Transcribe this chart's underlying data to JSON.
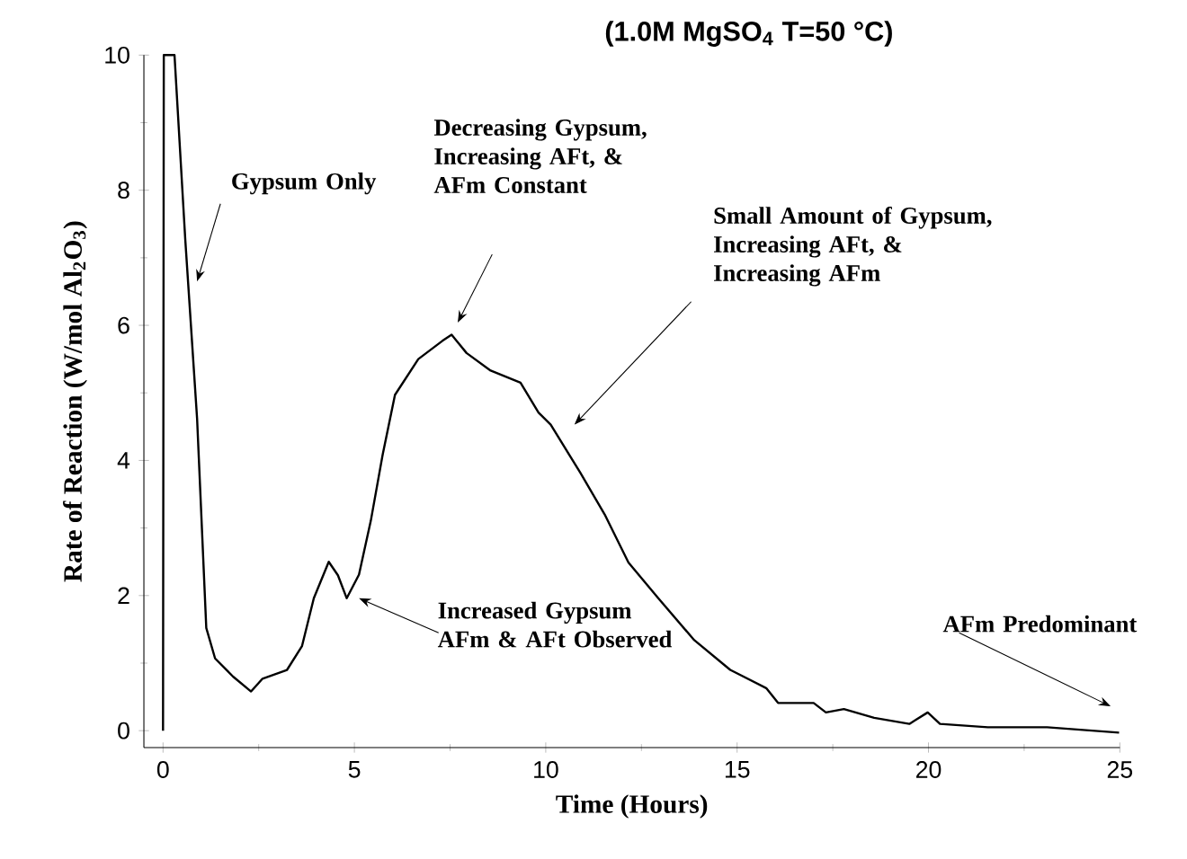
{
  "chart_data": {
    "type": "line",
    "title": "(1.0M MgSO$_{4}$ T=50 °C)",
    "xlabel": "Time (Hours)",
    "ylabel": "Rate of Reaction (W/mol Al$_{2}$O$_{3}$)",
    "xlim": [
      -0.5,
      25
    ],
    "ylim": [
      -0.25,
      10
    ],
    "xticks": [
      0,
      5,
      10,
      15,
      20,
      25
    ],
    "yticks": [
      0,
      2,
      4,
      6,
      8,
      10
    ],
    "marker": "none",
    "line_style": "solid",
    "series": [
      {
        "color": "#000000",
        "x": [
          0,
          0.02,
          0.3,
          0.58,
          0.89,
          1.13,
          1.36,
          1.83,
          2.3,
          2.6,
          3.24,
          3.63,
          3.94,
          4.33,
          4.57,
          4.8,
          5.12,
          5.43,
          5.74,
          6.06,
          6.67,
          7.3,
          7.54,
          7.93,
          8.56,
          9.34,
          9.81,
          10.13,
          10.9,
          11.54,
          12.16,
          12.94,
          13.88,
          14.82,
          15.76,
          16.07,
          17.0,
          17.32,
          17.79,
          18.58,
          19.5,
          19.98,
          20.3,
          21.55,
          23.1,
          24.98
        ],
        "values": [
          0,
          10,
          10,
          7.28,
          4.62,
          1.52,
          1.07,
          0.8,
          0.58,
          0.77,
          0.9,
          1.25,
          1.96,
          2.5,
          2.3,
          1.96,
          2.31,
          3.11,
          4.09,
          4.97,
          5.5,
          5.77,
          5.86,
          5.59,
          5.33,
          5.15,
          4.71,
          4.53,
          3.82,
          3.2,
          2.49,
          1.96,
          1.34,
          0.9,
          0.63,
          0.41,
          0.41,
          0.27,
          0.32,
          0.19,
          0.1,
          0.27,
          0.1,
          0.05,
          0.05,
          -0.03
        ]
      }
    ],
    "annotations": [
      "Gypsum Only",
      "Decreasing Gypsum, Increasing AFt, & AFm Constant",
      "Small Amount of Gypsum, Increasing AFt, & Increasing AFm",
      "Increased Gypsum AFm & AFt Observed",
      "AFm Predominant"
    ]
  }
}
